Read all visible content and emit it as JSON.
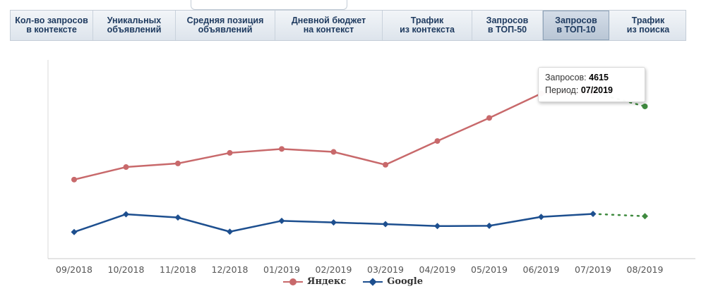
{
  "tabs": [
    {
      "label": "Кол-во запросов\nв контексте",
      "width": 117,
      "active": false
    },
    {
      "label": "Уникальных\nобъявлений",
      "width": 117,
      "active": false
    },
    {
      "label": "Средняя позиция\nобъявлений",
      "width": 141,
      "active": false
    },
    {
      "label": "Дневной бюджет\nна контекст",
      "width": 152,
      "active": false
    },
    {
      "label": "Трафик\nиз контекста",
      "width": 127,
      "active": false
    },
    {
      "label": "Запросов\nв ТОП-50",
      "width": 100,
      "active": false
    },
    {
      "label": "Запросов\nв ТОП-10",
      "width": 94,
      "active": true
    },
    {
      "label": "Трафик\nиз поиска",
      "width": 110,
      "active": false
    }
  ],
  "tooltip": {
    "label1": "Запросов:",
    "value1": "4615",
    "label2": "Период:",
    "value2": "07/2019"
  },
  "chart_data": {
    "type": "line",
    "categories": [
      "09/2018",
      "10/2018",
      "11/2018",
      "12/2018",
      "01/2019",
      "02/2019",
      "03/2019",
      "04/2019",
      "05/2019",
      "06/2019",
      "07/2019",
      "08/2019"
    ],
    "series": [
      {
        "name": "Яндекс",
        "color": "#c8696b",
        "marker": "circle",
        "values": [
          1970,
          2350,
          2460,
          2780,
          2900,
          2810,
          2420,
          3140,
          3840,
          4580,
          4615,
          null
        ],
        "forecast": {
          "category": "08/2019",
          "value": 4190,
          "color": "#3f8a3f"
        }
      },
      {
        "name": "Google",
        "color": "#1d4f8f",
        "marker": "diamond",
        "values": [
          380,
          920,
          820,
          390,
          720,
          670,
          620,
          560,
          570,
          840,
          930,
          null
        ],
        "forecast": {
          "category": "08/2019",
          "value": 860,
          "color": "#3f8a3f"
        }
      }
    ],
    "ylim": [
      0,
      5600
    ],
    "grid": false,
    "legend": "bottom-center"
  }
}
